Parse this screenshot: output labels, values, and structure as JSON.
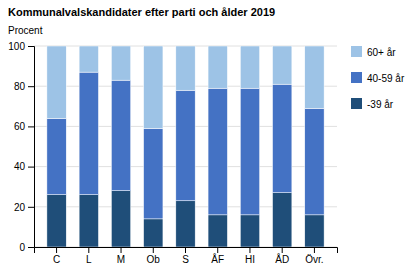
{
  "chart_data": {
    "type": "bar",
    "stacked": true,
    "title": "Kommunalvalskandidater efter parti och ålder 2019",
    "ylabel": "Procent",
    "categories": [
      "C",
      "L",
      "M",
      "Ob",
      "S",
      "ÅF",
      "HI",
      "ÅD",
      "Övr."
    ],
    "series": [
      {
        "name": "-39 år",
        "color": "#1f4e79",
        "values": [
          26,
          26,
          28,
          14,
          23,
          16,
          16,
          27,
          16
        ]
      },
      {
        "name": "40-59 år",
        "color": "#4472c4",
        "values": [
          38,
          61,
          55,
          45,
          55,
          63,
          63,
          54,
          53
        ]
      },
      {
        "name": "60+ år",
        "color": "#9dc3e6",
        "values": [
          36,
          13,
          17,
          41,
          22,
          21,
          21,
          19,
          31
        ]
      }
    ],
    "ylim": [
      0,
      100
    ],
    "yticks": [
      0,
      20,
      40,
      60,
      80,
      100
    ],
    "grid": true,
    "legend": "right"
  }
}
